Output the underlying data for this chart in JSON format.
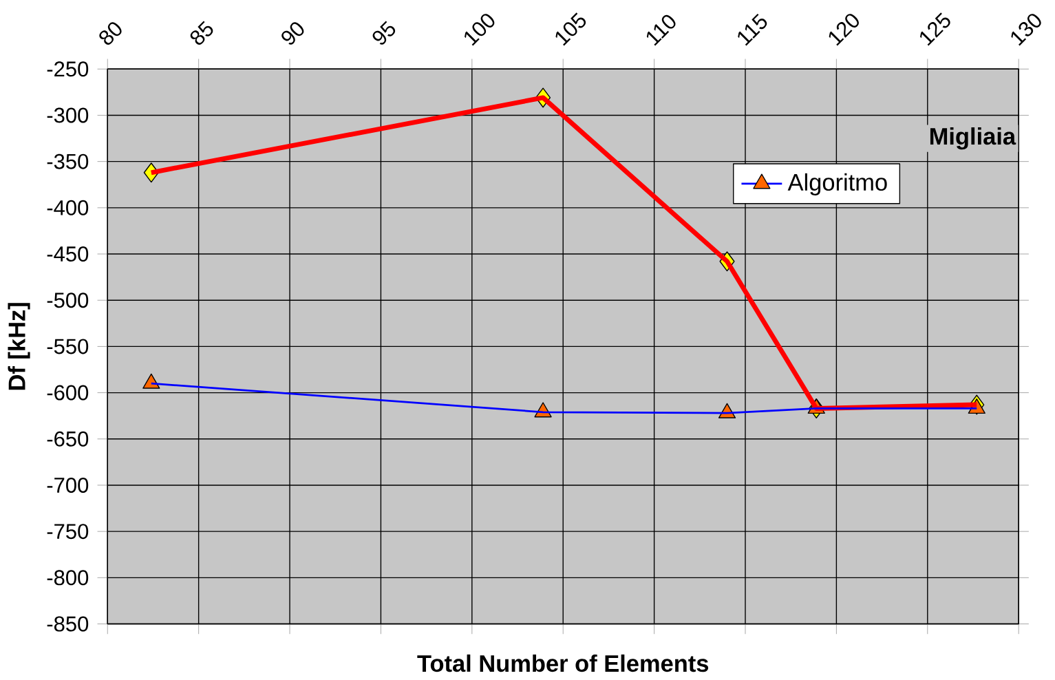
{
  "chart_data": {
    "type": "line",
    "xlabel": "Total Number of Elements",
    "ylabel": "Df [kHz]",
    "annotations": [
      "Migliaia"
    ],
    "xlim": [
      80,
      130
    ],
    "xticks": [
      80,
      85,
      90,
      95,
      100,
      105,
      110,
      115,
      120,
      125,
      130
    ],
    "ylim": [
      -850,
      -250
    ],
    "yticks": [
      -850,
      -800,
      -750,
      -700,
      -650,
      -600,
      -550,
      -500,
      -450,
      -400,
      -350,
      -300,
      -250
    ],
    "grid": true,
    "legend": "top right",
    "series": [
      {
        "color": "#ff0000",
        "marker": "diamond",
        "x": [
          82.4,
          103.9,
          114.0,
          118.9,
          127.7
        ],
        "values": [
          -362,
          -281,
          -458,
          -617,
          -613
        ]
      },
      {
        "name": "Algoritmo",
        "color": "#0000ff",
        "marker": "triangle",
        "x": [
          82.4,
          103.9,
          114.0,
          118.9,
          127.7
        ],
        "values": [
          -590,
          -621,
          -622,
          -617,
          -617
        ]
      }
    ]
  }
}
